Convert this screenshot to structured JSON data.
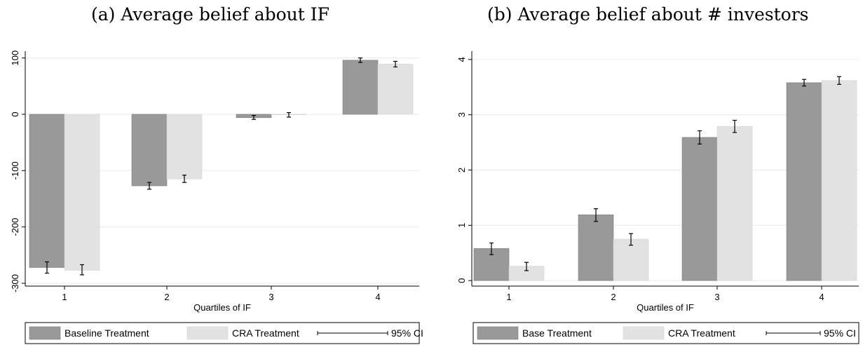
{
  "chart_data": [
    {
      "type": "bar",
      "title": "(a) Average belief about IF",
      "xlabel": "Quartiles of IF",
      "ylabel": "",
      "categories": [
        "1",
        "2",
        "3",
        "4"
      ],
      "ylim": [
        -305,
        112
      ],
      "yticks": [
        100,
        0,
        -100,
        -200,
        -300
      ],
      "grid": true,
      "legend_position": "bottom",
      "series": [
        {
          "name": "Baseline Treatment",
          "color": "#999999",
          "values": [
            -272,
            -127,
            -6,
            96
          ],
          "ci_low": [
            -282,
            -133,
            -9,
            92
          ],
          "ci_high": [
            -262,
            -121,
            -2,
            100
          ]
        },
        {
          "name": "CRA Treatment",
          "color": "#e2e2e2",
          "values": [
            -277,
            -115,
            -1,
            89
          ],
          "ci_low": [
            -285,
            -121,
            -5,
            84
          ],
          "ci_high": [
            -267,
            -108,
            3,
            94
          ]
        }
      ],
      "ci_label": "95% CI"
    },
    {
      "type": "bar",
      "title": "(b) Average belief about # investors",
      "xlabel": "Quartiles of IF",
      "ylabel": "",
      "categories": [
        "1",
        "2",
        "3",
        "4"
      ],
      "ylim": [
        -0.1,
        4.15
      ],
      "yticks": [
        0,
        1,
        2,
        3,
        4
      ],
      "grid": true,
      "legend_position": "bottom",
      "series": [
        {
          "name": "Base Treatment",
          "color": "#999999",
          "values": [
            0.58,
            1.19,
            2.59,
            3.58
          ],
          "ci_low": [
            0.47,
            1.07,
            2.47,
            3.52
          ],
          "ci_high": [
            0.68,
            1.3,
            2.71,
            3.64
          ]
        },
        {
          "name": "CRA Treatment",
          "color": "#e2e2e2",
          "values": [
            0.26,
            0.75,
            2.79,
            3.62
          ],
          "ci_low": [
            0.18,
            0.64,
            2.68,
            3.55
          ],
          "ci_high": [
            0.33,
            0.85,
            2.9,
            3.69
          ]
        }
      ],
      "ci_label": "95% CI"
    }
  ]
}
